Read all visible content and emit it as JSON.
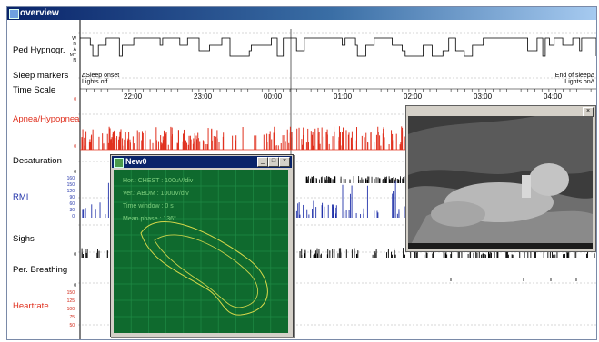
{
  "window": {
    "title": "overview"
  },
  "channels": [
    {
      "label": "Ped Hypnogr."
    },
    {
      "label": "Sleep markers"
    },
    {
      "label": "Time Scale"
    },
    {
      "label": "Apnea/Hypopnea"
    },
    {
      "label": "Desaturation"
    },
    {
      "label": "RMI"
    },
    {
      "label": "Sighs"
    },
    {
      "label": "Per. Breathing"
    },
    {
      "label": "Heartrate"
    }
  ],
  "hypno_ticks": [
    "W",
    "R",
    "A",
    "MT",
    "N"
  ],
  "rmi_ticks": [
    "160",
    "150",
    "120",
    "90",
    "60",
    "30",
    "0"
  ],
  "heart_ticks": [
    "150",
    "125",
    "100",
    "75",
    "50"
  ],
  "small_ticks": {
    "zero": "0"
  },
  "time_scale": [
    "22:00",
    "23:00",
    "00:00",
    "01:00",
    "02:00",
    "03:00",
    "04:00"
  ],
  "sleep_markers": {
    "left_line1": "∆Sleep onset",
    "left_line2": "Lights off",
    "right_line1": "End of sleep∆",
    "right_line2": "Lights on∆"
  },
  "scope": {
    "title": "New0",
    "hor": "Hor.: CHEST : 100uV/div",
    "ver": "Ver.: ABDM : 100uV/div",
    "time_window": "Time window : 0 s",
    "mean_phase": "Mean phase : 136°",
    "buttons": {
      "minimize": "_",
      "maximize": "□",
      "close": "×"
    }
  },
  "video": {
    "close": "×"
  },
  "colors": {
    "red": "#e0301e",
    "blue": "#2233aa",
    "scope_bg": "#0f6a2e",
    "trace": "#d7d84a"
  }
}
